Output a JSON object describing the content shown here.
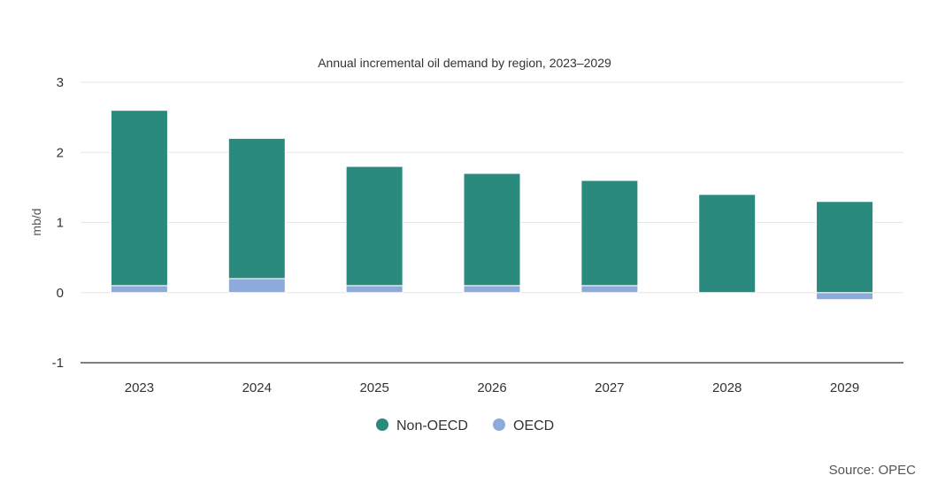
{
  "chart_data": {
    "type": "bar",
    "stacked": true,
    "title": "Annual incremental oil demand by region, 2023–2029",
    "xlabel": "",
    "ylabel": "mb/d",
    "ylim": [
      -1,
      3
    ],
    "yticks": [
      -1,
      0,
      1,
      2,
      3
    ],
    "grid": true,
    "legend_position": "bottom-center",
    "categories": [
      "2023",
      "2024",
      "2025",
      "2026",
      "2027",
      "2028",
      "2029"
    ],
    "series": [
      {
        "name": "OECD",
        "color": "#8eaadb",
        "values": [
          0.1,
          0.2,
          0.1,
          0.1,
          0.1,
          0.0,
          -0.1
        ]
      },
      {
        "name": "Non-OECD",
        "color": "#2b8a7e",
        "values": [
          2.5,
          2.0,
          1.7,
          1.6,
          1.5,
          1.4,
          1.3
        ]
      }
    ],
    "legend_order": [
      "Non-OECD",
      "OECD"
    ],
    "source": "Source: OPEC"
  }
}
